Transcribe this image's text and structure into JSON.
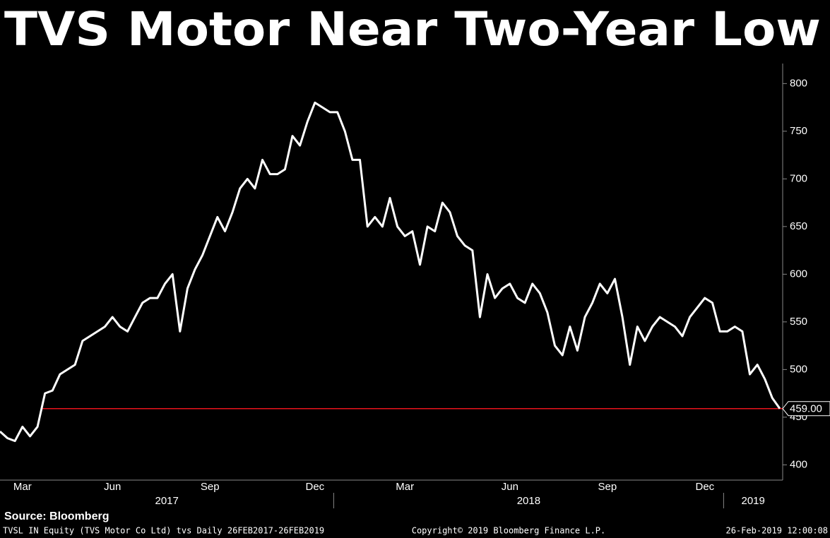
{
  "chart_data": {
    "type": "line",
    "title": "TVS Motor Near Two-Year Low",
    "source": "Source: Bloomberg",
    "footer_left": "TVSL IN Equity (TVS Motor Co Ltd) tvs  Daily 26FEB2017-26FEB2019",
    "footer_center": "Copyright© 2019 Bloomberg Finance L.P.",
    "footer_right": "26-Feb-2019 12:00:08",
    "categories": [
      null,
      null,
      null,
      "Mar",
      null,
      null,
      null,
      null,
      null,
      null,
      null,
      null,
      null,
      null,
      null,
      "Jun",
      null,
      null,
      null,
      null,
      null,
      null,
      null,
      null,
      null,
      null,
      null,
      null,
      "Sep",
      null,
      null,
      null,
      null,
      null,
      null,
      null,
      null,
      null,
      null,
      null,
      null,
      null,
      "Dec",
      null,
      null,
      null,
      null,
      null,
      null,
      null,
      null,
      null,
      null,
      null,
      "Mar",
      null,
      null,
      null,
      null,
      null,
      null,
      null,
      null,
      null,
      null,
      null,
      null,
      null,
      "Jun",
      null,
      null,
      null,
      null,
      null,
      null,
      null,
      null,
      null,
      null,
      null,
      null,
      "Sep",
      null,
      null,
      null,
      null,
      null,
      null,
      null,
      null,
      null,
      null,
      null,
      null,
      "Dec",
      null,
      null,
      null,
      null,
      null,
      null,
      null,
      null,
      null,
      null
    ],
    "years": [
      "2017",
      "2018",
      "2019"
    ],
    "series": [
      {
        "name": "TVSL IN Equity",
        "color": "#ffffff",
        "values": [
          435,
          428,
          425,
          440,
          430,
          440,
          475,
          478,
          495,
          500,
          505,
          530,
          535,
          540,
          545,
          555,
          545,
          540,
          555,
          570,
          575,
          575,
          590,
          600,
          540,
          585,
          605,
          620,
          640,
          660,
          645,
          665,
          690,
          700,
          690,
          720,
          705,
          705,
          710,
          745,
          735,
          760,
          780,
          775,
          770,
          770,
          750,
          720,
          720,
          650,
          660,
          650,
          680,
          650,
          640,
          645,
          610,
          650,
          645,
          675,
          665,
          640,
          630,
          625,
          555,
          600,
          575,
          585,
          590,
          575,
          570,
          590,
          580,
          560,
          525,
          515,
          545,
          520,
          555,
          570,
          590,
          580,
          595,
          555,
          505,
          545,
          530,
          545,
          555,
          550,
          545,
          535,
          555,
          565,
          575,
          570,
          540,
          540,
          545,
          540,
          495,
          505,
          490,
          470,
          459
        ]
      }
    ],
    "reference_line": {
      "value": 459,
      "label": "459.00",
      "color": "#e8141c"
    },
    "ylim": [
      384,
      821
    ],
    "yticks": [
      400,
      450,
      500,
      550,
      600,
      650,
      700,
      750,
      800
    ]
  }
}
